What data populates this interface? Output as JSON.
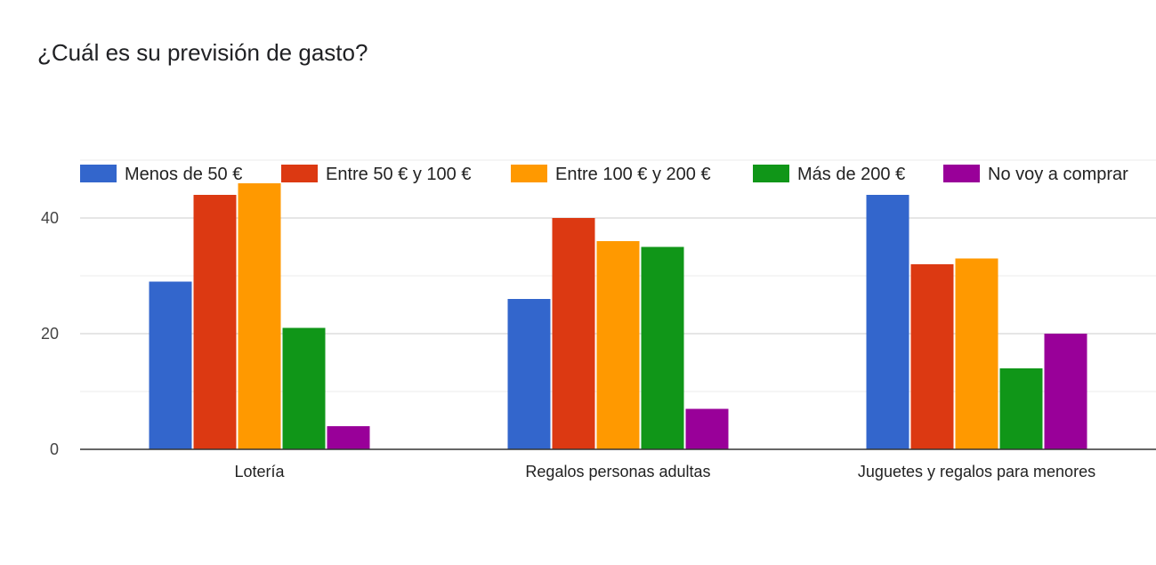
{
  "chart_data": {
    "type": "bar",
    "title": "¿Cuál es su previsión de gasto?",
    "categories": [
      "Lotería",
      "Regalos personas adultas",
      "Juguetes y regalos para menores"
    ],
    "series": [
      {
        "name": "Menos de 50 €",
        "color": "#3366cc",
        "values": [
          29,
          26,
          44
        ]
      },
      {
        "name": "Entre 50 € y 100 €",
        "color": "#dc3912",
        "values": [
          44,
          40,
          32
        ]
      },
      {
        "name": "Entre 100 € y 200 €",
        "color": "#ff9900",
        "values": [
          46,
          36,
          33
        ]
      },
      {
        "name": "Más de 200 €",
        "color": "#109618",
        "values": [
          21,
          35,
          14
        ]
      },
      {
        "name": "No voy a comprar",
        "color": "#990099",
        "values": [
          4,
          7,
          20
        ]
      }
    ],
    "yticks": [
      0,
      20,
      40
    ],
    "ylim": [
      0,
      50
    ],
    "grid": true,
    "legend_position": "top"
  }
}
